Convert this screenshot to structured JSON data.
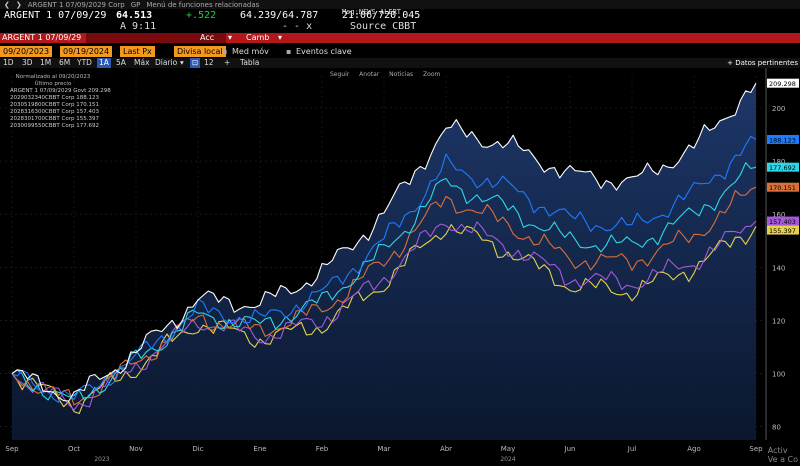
{
  "topbar": {
    "items": [
      "ARGENT 1 07/09/2029 Corp",
      "GP",
      "Menú de funciones relacionadas"
    ]
  },
  "quote": {
    "ticker": "ARGENT 1 07/09/29",
    "price": "64.513",
    "change": "+.522",
    "bid_ask": "64.239/64.787",
    "time_code": "21:06/720.045",
    "news": "Msg:NEWS ALERT",
    "sub_label": "A 9:11",
    "arrows": "- -  x",
    "source": "Source CBBT"
  },
  "redbar": {
    "ticker": "ARGENT 1 07/09/29",
    "acc": "Acc",
    "camb": "Camb"
  },
  "controls": {
    "start_date": "09/20/2023",
    "end_date": "09/19/2024",
    "price_type": "Last Px",
    "currency": "Divisa local",
    "moving_avg": "Med móv",
    "events": "Eventos clave"
  },
  "periods": [
    "1D",
    "3D",
    "1M",
    "6M",
    "YTD",
    "1A",
    "5A",
    "Máx"
  ],
  "selected_period": "1A",
  "frequency": "Diario",
  "size_value": "12",
  "table_label": "Tabla",
  "datos_label": "+ Datos pertinentes",
  "plot_buttons": [
    "Seguir",
    "Anotar",
    "Noticias",
    "Zoom"
  ],
  "legend": {
    "header1": "Normalizado al 09/20/2023",
    "header2": "Último precio",
    "entries": [
      {
        "label": "ARGENT 1 07/09/2029 Govt",
        "value": "209.298",
        "color": "#ffffff"
      },
      {
        "label": "2029032340CBBT Corp",
        "value": "188.123",
        "color": "#1e7bff"
      },
      {
        "label": "2030519800CBBT Corp",
        "value": "170.151",
        "color": "#d9703a"
      },
      {
        "label": "2028316300CBBT Corp",
        "value": "157.403",
        "color": "#a35ad9"
      },
      {
        "label": "2028301700CBBT Corp",
        "value": "155.397",
        "color": "#e6d14a"
      },
      {
        "label": "2030099550CBBT Corp",
        "value": "177.692",
        "color": "#2fd6e6"
      }
    ]
  },
  "watermark": [
    "Activ",
    "Ve a Co"
  ],
  "chart_data": {
    "type": "line",
    "x": [
      "Sep",
      "Oct",
      "Nov",
      "Dic",
      "Ene",
      "Feb",
      "Mar",
      "Abr",
      "May",
      "Jun",
      "Jul",
      "Ago",
      "Sep"
    ],
    "x_years": {
      "Sep": "2023",
      "May": "2024"
    },
    "yticks": [
      80,
      100,
      120,
      140,
      160,
      180,
      200
    ],
    "ylim": [
      75,
      212
    ],
    "series": [
      {
        "name": "ARGENT 1 07/09/2029 Govt",
        "color": "#ffffff",
        "values": [
          100,
          91,
          108,
          128,
          126,
          138,
          160,
          192,
          186,
          175,
          172,
          185,
          209.298
        ]
      },
      {
        "name": "2029032340CBBT Corp",
        "color": "#1e7bff",
        "values": [
          100,
          90,
          106,
          124,
          120,
          130,
          150,
          178,
          170,
          158,
          155,
          168,
          188.123
        ]
      },
      {
        "name": "2030099550CBBT Corp",
        "color": "#2fd6e6",
        "values": [
          100,
          89,
          105,
          122,
          118,
          127,
          146,
          172,
          162,
          150,
          148,
          160,
          177.692
        ]
      },
      {
        "name": "2030519800CBBT Corp",
        "color": "#d9703a",
        "values": [
          100,
          89,
          104,
          121,
          116,
          124,
          142,
          166,
          156,
          143,
          142,
          152,
          170.151
        ]
      },
      {
        "name": "2028316300CBBT Corp",
        "color": "#a35ad9",
        "values": [
          100,
          88,
          103,
          120,
          114,
          120,
          136,
          158,
          148,
          136,
          134,
          142,
          157.403
        ]
      },
      {
        "name": "2028301700CBBT Corp",
        "color": "#e6d14a",
        "values": [
          100,
          88,
          102,
          119,
          113,
          118,
          134,
          156,
          146,
          133,
          131,
          140,
          155.397
        ]
      }
    ],
    "value_labels": [
      "209.298",
      "188.123",
      "177.692",
      "170.151",
      "157.403",
      "155.397"
    ]
  }
}
